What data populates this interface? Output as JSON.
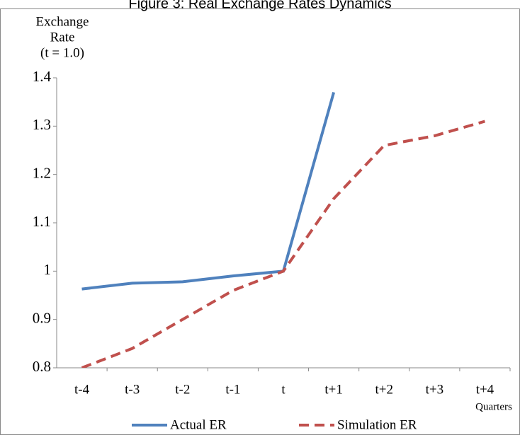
{
  "chart_data": {
    "type": "line",
    "title": "Figure 3: Real Exchange Rates Dynamics",
    "y_label": [
      "Exchange",
      "Rate",
      "(t = 1.0)"
    ],
    "x_label": "Quarters",
    "categories": [
      "t-4",
      "t-3",
      "t-2",
      "t-1",
      "t",
      "t+1",
      "t+2",
      "t+3",
      "t+4"
    ],
    "series": [
      {
        "name": "Actual ER",
        "color": "#4f81bd",
        "dashed": false,
        "values": [
          0.963,
          0.975,
          0.978,
          0.99,
          1.0,
          1.37,
          null,
          null,
          null
        ]
      },
      {
        "name": "Simulation ER",
        "color": "#c0504d",
        "dashed": true,
        "values": [
          0.8,
          0.84,
          0.9,
          0.96,
          1.0,
          1.15,
          1.26,
          1.28,
          1.31
        ]
      }
    ],
    "ylim": [
      0.8,
      1.4
    ],
    "yticks": [
      0.8,
      0.9,
      1,
      1.1,
      1.2,
      1.3,
      1.4
    ],
    "grid": false,
    "legend": "bottom"
  }
}
